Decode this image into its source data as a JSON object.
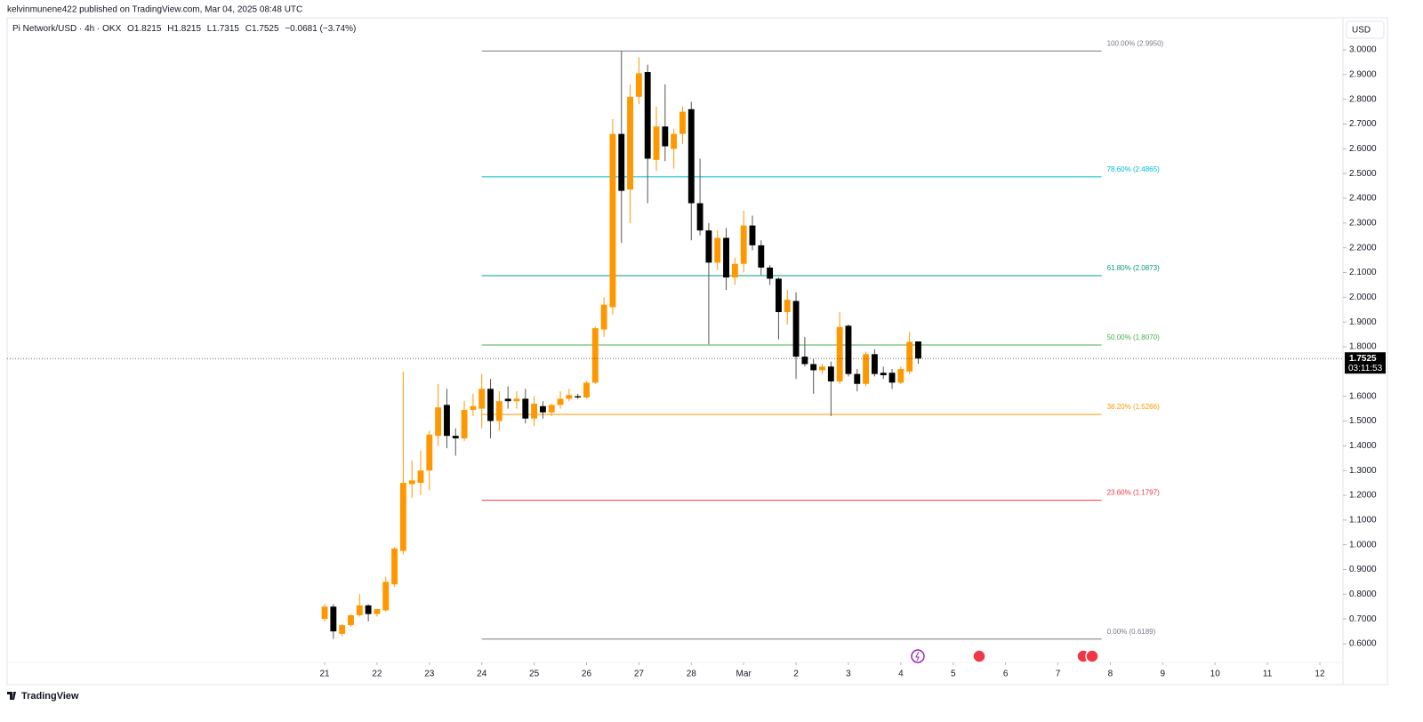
{
  "header": {
    "published": "kelvinmunene422 published on TradingView.com, Mar 04, 2025 08:48 UTC",
    "logo": "TradingView",
    "currency": "USD"
  },
  "chart_data": {
    "type": "candlestick",
    "title": "Pi Network/USD · 4h · OKX",
    "legend": {
      "open": "O1.8215",
      "high": "H1.8215",
      "low": "L1.7315",
      "close": "C1.7525",
      "change": "−0.0681 (−3.74%)"
    },
    "x": [
      0,
      4,
      8,
      12,
      16,
      20,
      24,
      28,
      32,
      36,
      40,
      44,
      48,
      52,
      56,
      60,
      64,
      68,
      72,
      76,
      80,
      84,
      88,
      92,
      96,
      100,
      104,
      108,
      112,
      116,
      120,
      124,
      128,
      132,
      136,
      140,
      144,
      148,
      152,
      156,
      160,
      164,
      168,
      172,
      176,
      180,
      184,
      188,
      192,
      196,
      200,
      204,
      208,
      212,
      216,
      220,
      224,
      228,
      232,
      236,
      240,
      244,
      248,
      252,
      256,
      260,
      264,
      268,
      272
    ],
    "open": [
      0.7,
      0.75,
      0.64,
      0.675,
      0.715,
      0.755,
      0.72,
      0.735,
      0.84,
      0.975,
      1.245,
      1.25,
      1.3,
      1.44,
      1.565,
      1.44,
      1.43,
      1.545,
      1.55,
      1.63,
      1.5,
      1.59,
      1.58,
      1.59,
      1.51,
      1.56,
      1.535,
      1.565,
      1.59,
      1.6,
      1.595,
      1.655,
      1.87,
      1.96,
      2.66,
      2.435,
      2.81,
      2.91,
      2.555,
      2.69,
      2.6,
      2.66,
      2.76,
      2.38,
      2.27,
      2.14,
      2.24,
      2.08,
      2.135,
      2.29,
      2.21,
      2.12,
      2.075,
      1.94,
      1.985,
      1.76,
      1.73,
      1.705,
      1.72,
      1.66,
      1.885,
      1.69,
      1.65,
      1.77,
      1.695,
      1.695,
      1.655,
      1.7,
      1.8215
    ],
    "high": [
      0.76,
      0.76,
      0.68,
      0.72,
      0.8,
      0.76,
      0.74,
      0.87,
      0.99,
      1.7,
      1.34,
      1.38,
      1.46,
      1.65,
      1.63,
      1.47,
      1.58,
      1.61,
      1.69,
      1.67,
      1.62,
      1.64,
      1.62,
      1.63,
      1.6,
      1.58,
      1.57,
      1.62,
      1.63,
      1.61,
      1.66,
      1.88,
      2.0,
      2.72,
      2.995,
      2.86,
      2.97,
      2.94,
      2.77,
      2.86,
      2.68,
      2.77,
      2.79,
      2.56,
      2.3,
      2.27,
      2.28,
      2.16,
      2.35,
      2.33,
      2.23,
      2.13,
      2.08,
      2.03,
      2.02,
      1.84,
      1.75,
      1.73,
      1.74,
      1.94,
      1.89,
      1.71,
      1.78,
      1.79,
      1.72,
      1.71,
      1.72,
      1.86,
      1.8215
    ],
    "low": [
      0.69,
      0.62,
      0.63,
      0.67,
      0.71,
      0.69,
      0.71,
      0.73,
      0.83,
      0.96,
      1.19,
      1.2,
      1.22,
      1.4,
      1.39,
      1.36,
      1.42,
      1.52,
      1.47,
      1.43,
      1.46,
      1.55,
      1.55,
      1.49,
      1.48,
      1.51,
      1.52,
      1.55,
      1.58,
      1.59,
      1.59,
      1.65,
      1.84,
      1.93,
      2.22,
      2.3,
      2.78,
      2.38,
      2.51,
      2.55,
      2.52,
      2.62,
      2.23,
      2.25,
      1.81,
      2.11,
      2.03,
      2.05,
      2.1,
      2.19,
      2.09,
      2.05,
      1.83,
      1.89,
      1.67,
      1.72,
      1.61,
      1.69,
      1.52,
      1.65,
      1.68,
      1.62,
      1.64,
      1.68,
      1.67,
      1.63,
      1.65,
      1.69,
      1.7315
    ],
    "close": [
      0.75,
      0.65,
      0.675,
      0.715,
      0.755,
      0.72,
      0.74,
      0.85,
      0.985,
      1.25,
      1.26,
      1.3,
      1.445,
      1.555,
      1.44,
      1.43,
      1.545,
      1.56,
      1.63,
      1.5,
      1.58,
      1.58,
      1.59,
      1.51,
      1.57,
      1.535,
      1.565,
      1.59,
      1.605,
      1.595,
      1.655,
      1.875,
      1.97,
      2.66,
      2.43,
      2.81,
      2.905,
      2.56,
      2.69,
      2.61,
      2.66,
      2.75,
      2.38,
      2.27,
      2.14,
      2.24,
      2.08,
      2.135,
      2.29,
      2.21,
      2.12,
      2.075,
      1.94,
      1.99,
      1.76,
      1.73,
      1.705,
      1.72,
      1.66,
      1.88,
      1.69,
      1.65,
      1.77,
      1.69,
      1.685,
      1.655,
      1.71,
      1.82,
      1.7525
    ],
    "up_color": "#ff9800",
    "down_color": "#000000",
    "last_price": 1.7525,
    "countdown": "03:11:53",
    "fib_levels": [
      {
        "value": 2.995,
        "label": "100.00% (2.9950)",
        "color": "#787b86"
      },
      {
        "value": 2.4865,
        "label": "78.60% (2.4865)",
        "color": "#00bcd4"
      },
      {
        "value": 2.0873,
        "label": "61.80% (2.0873)",
        "color": "#089981"
      },
      {
        "value": 1.807,
        "label": "50.00% (1.8070)",
        "color": "#4caf50"
      },
      {
        "value": 1.5266,
        "label": "38.20% (1.5266)",
        "color": "#ff9800"
      },
      {
        "value": 1.1797,
        "label": "23.60% (1.1797)",
        "color": "#f23645"
      },
      {
        "value": 0.6189,
        "label": "0.00% (0.6189)",
        "color": "#787b86"
      }
    ],
    "xlim": [
      -145.5,
      466.6
    ],
    "xticks": [
      {
        "value": 0,
        "label": "21"
      },
      {
        "value": 24,
        "label": "22"
      },
      {
        "value": 48,
        "label": "23"
      },
      {
        "value": 72,
        "label": "24"
      },
      {
        "value": 96,
        "label": "25"
      },
      {
        "value": 120,
        "label": "26"
      },
      {
        "value": 144,
        "label": "27"
      },
      {
        "value": 168,
        "label": "28"
      },
      {
        "value": 192,
        "label": "Mar"
      },
      {
        "value": 216,
        "label": "2"
      },
      {
        "value": 240,
        "label": "3"
      },
      {
        "value": 264,
        "label": "4"
      },
      {
        "value": 288,
        "label": "5"
      },
      {
        "value": 312,
        "label": "6"
      },
      {
        "value": 336,
        "label": "7"
      },
      {
        "value": 360,
        "label": "8"
      },
      {
        "value": 384,
        "label": "9"
      },
      {
        "value": 408,
        "label": "10"
      },
      {
        "value": 432,
        "label": "11"
      },
      {
        "value": 456,
        "label": "12"
      }
    ],
    "ylim": [
      0.5245,
      3.1293
    ],
    "yticks": [
      {
        "value": 0.6,
        "label": "0.6000"
      },
      {
        "value": 0.7,
        "label": "0.7000"
      },
      {
        "value": 0.8,
        "label": "0.8000"
      },
      {
        "value": 0.9,
        "label": "0.9000"
      },
      {
        "value": 1.0,
        "label": "1.0000"
      },
      {
        "value": 1.1,
        "label": "1.1000"
      },
      {
        "value": 1.2,
        "label": "1.2000"
      },
      {
        "value": 1.3,
        "label": "1.3000"
      },
      {
        "value": 1.4,
        "label": "1.4000"
      },
      {
        "value": 1.5,
        "label": "1.5000"
      },
      {
        "value": 1.6,
        "label": "1.6000"
      },
      {
        "value": 1.8,
        "label": "1.8000"
      },
      {
        "value": 1.9,
        "label": "1.9000"
      },
      {
        "value": 2.0,
        "label": "2.0000"
      },
      {
        "value": 2.1,
        "label": "2.1000"
      },
      {
        "value": 2.2,
        "label": "2.2000"
      },
      {
        "value": 2.3,
        "label": "2.3000"
      },
      {
        "value": 2.4,
        "label": "2.4000"
      },
      {
        "value": 2.5,
        "label": "2.5000"
      },
      {
        "value": 2.6,
        "label": "2.6000"
      },
      {
        "value": 2.7,
        "label": "2.7000"
      },
      {
        "value": 2.8,
        "label": "2.8000"
      },
      {
        "value": 2.9,
        "label": "2.9000"
      },
      {
        "value": 3.0,
        "label": "3.0000"
      }
    ],
    "grid": false
  }
}
